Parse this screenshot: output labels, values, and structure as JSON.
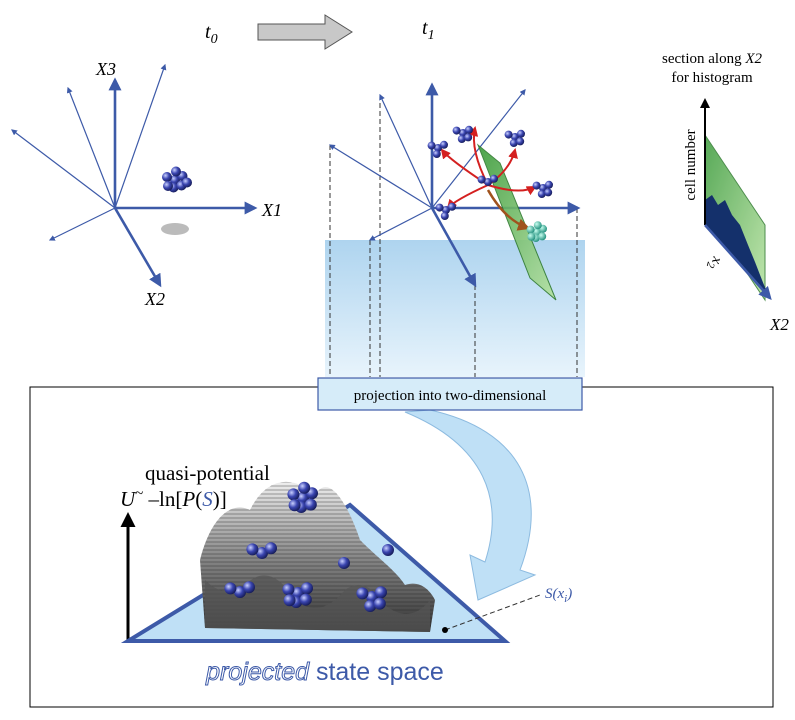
{
  "time_labels": [
    {
      "symbol": "t",
      "subscript": "0"
    },
    {
      "symbol": "t",
      "subscript": "1"
    }
  ],
  "axes": {
    "x3": "X3",
    "x1": "X1",
    "x2": "X2"
  },
  "histogram": {
    "caption_line1": "section along",
    "caption_axis": "X2",
    "caption_line2": "for histogram",
    "y_label": "cell number",
    "x_label": {
      "symbol": "x",
      "subscript": "2"
    },
    "axis": "X2"
  },
  "projection_box": "projection into two-dimensional",
  "potential": {
    "title": "quasi-potential",
    "formula": {
      "u": "U",
      "rel": "~",
      "prefix": " –ln[",
      "p": "P",
      "open": "(",
      "s": "S",
      "close": ")]"
    }
  },
  "state_label": {
    "symbol": "S(x",
    "subscript": "i",
    "close": ")"
  },
  "space_label": {
    "emphasis": "projected",
    "rest": " state space"
  }
}
